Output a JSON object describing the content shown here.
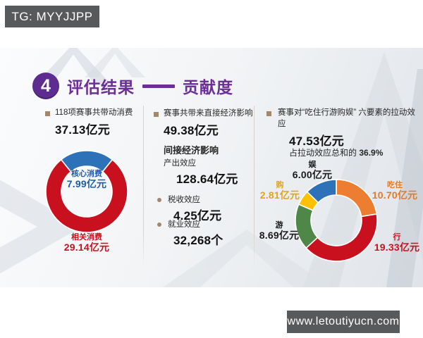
{
  "watermarks": {
    "top": "TG: MYYJJPP",
    "bottom": "www.letoutiyucn.com"
  },
  "header": {
    "number": "4",
    "title_left": "评估结果",
    "title_right": "贡献度"
  },
  "columns": {
    "consumption": {
      "heading": "118项赛事共带动消费",
      "amount": "37.13亿元"
    },
    "economy": {
      "heading": "赛事共带来直接经济影响",
      "amount": "49.38亿元",
      "indirect_heading": "间接经济影响",
      "output_label": "产出效应",
      "output_value": "128.64亿元",
      "tax_label": "税收效应",
      "tax_value": "4.25亿元",
      "jobs_label": "就业效应",
      "jobs_value": "32,268个"
    },
    "pull_effect": {
      "heading": "赛事对“吃住行游购娱” 六要素的拉动效应",
      "amount": "47.53亿元",
      "note_prefix": "占拉动效应总和的 ",
      "note_value": "36.9%"
    }
  },
  "chart_data": [
    {
      "type": "pie",
      "donut": true,
      "title": "118项赛事共带动消费 37.13亿元",
      "labels": [
        "核心消费",
        "相关消费"
      ],
      "values": [
        7.99,
        29.14
      ],
      "unit": "亿元",
      "value_labels": [
        "7.99亿元",
        "29.14亿元"
      ],
      "colors": [
        "#2d71b8",
        "#c9101e"
      ],
      "label_colors": [
        "#1e5ca8",
        "#c9101e"
      ],
      "start_angle_deg": -38.7,
      "legend_position": "on-chart"
    },
    {
      "type": "pie",
      "donut": true,
      "title": "赛事对“吃住行游购娱”六要素的拉动效应 47.53亿元",
      "labels": [
        "吃住",
        "行",
        "游",
        "购",
        "娱"
      ],
      "values": [
        10.7,
        19.33,
        8.69,
        2.81,
        6.0
      ],
      "unit": "亿元",
      "value_labels": [
        "10.70亿元",
        "19.33亿元",
        "8.69亿元",
        "2.81亿元",
        "6.00亿元"
      ],
      "colors": [
        "#ed7d31",
        "#c9101e",
        "#4e8747",
        "#ffc000",
        "#2d71b8"
      ],
      "label_colors": [
        "#e07b28",
        "#c9101e",
        "#1a1a1a",
        "#e2a31c",
        "#1a1a1a"
      ],
      "start_angle_deg": 0,
      "legend_position": "on-chart"
    }
  ]
}
